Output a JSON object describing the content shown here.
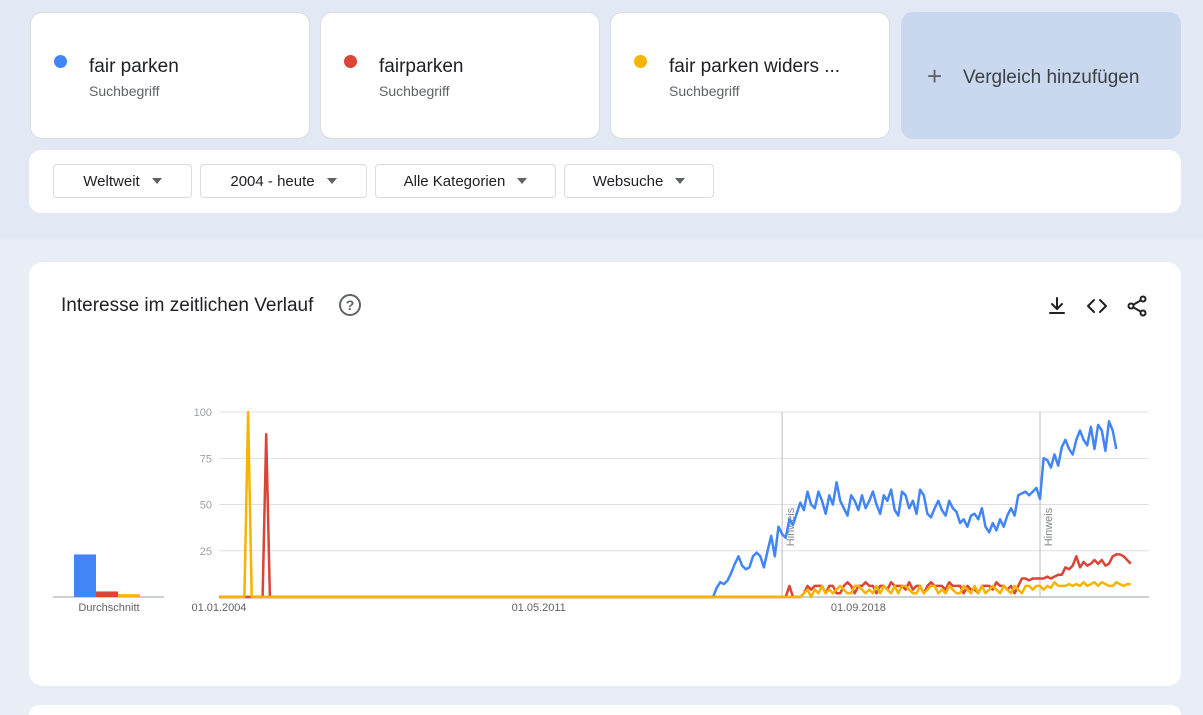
{
  "terms": [
    {
      "name": "fair parken",
      "type": "Suchbegriff",
      "color": "#4285f4"
    },
    {
      "name": "fairparken",
      "type": "Suchbegriff",
      "color": "#db4437"
    },
    {
      "name": "fair parken widers ...",
      "type": "Suchbegriff",
      "color": "#f4b400"
    }
  ],
  "add_compare": {
    "label": "Vergleich hinzufügen",
    "icon": "plus-icon"
  },
  "filters": {
    "region": "Weltweit",
    "time": "2004 - heute",
    "category": "Alle Kategorien",
    "search_type": "Websuche"
  },
  "chart_card": {
    "title": "Interesse im zeitlichen Verlauf",
    "help_icon": "help-circle-icon",
    "tools": [
      "download-icon",
      "embed-code-icon",
      "share-icon"
    ]
  },
  "chart_data": {
    "type": "line",
    "title": "Interesse im zeitlichen Verlauf",
    "ylim": [
      0,
      100
    ],
    "yticks": [
      100,
      75,
      50,
      25
    ],
    "x_labels": [
      "01.01.2004",
      "01.05.2011",
      "01.09.2018"
    ],
    "x_range": [
      "2004-01",
      "2025-05"
    ],
    "annotations": [
      {
        "label": "Hinweis",
        "date": "2016-12"
      },
      {
        "label": "Hinweis",
        "date": "2022-11"
      }
    ],
    "averages": {
      "label": "Durchschnitt",
      "values": [
        23,
        3,
        1.5
      ]
    },
    "series": [
      {
        "name": "fair parken",
        "color": "#4285f4",
        "start": "2015-06",
        "values": [
          5,
          8,
          7,
          9,
          13,
          18,
          22,
          17,
          15,
          16,
          22,
          24,
          22,
          16,
          25,
          33,
          22,
          38,
          34,
          32,
          42,
          39,
          45,
          51,
          47,
          57,
          50,
          48,
          57,
          52,
          45,
          55,
          50,
          62,
          52,
          48,
          44,
          55,
          52,
          47,
          55,
          48,
          52,
          57,
          50,
          45,
          55,
          52,
          58,
          47,
          44,
          57,
          55,
          48,
          52,
          45,
          58,
          55,
          45,
          43,
          48,
          52,
          47,
          44,
          52,
          48,
          46,
          40,
          42,
          38,
          44,
          45,
          42,
          48,
          38,
          35,
          40,
          36,
          42,
          38,
          44,
          48,
          44,
          55,
          56,
          57,
          55,
          57,
          59,
          53,
          75,
          74,
          70,
          77,
          71,
          81,
          85,
          80,
          77,
          85,
          90,
          85,
          82,
          92,
          80,
          93,
          90,
          79,
          95,
          90,
          80
        ]
      },
      {
        "name": "fairparken",
        "color": "#db4437",
        "start": "2004-01",
        "spikes": [
          {
            "date": "2005-02",
            "value": 88
          }
        ],
        "late_start": "2017-02",
        "values": [
          6,
          0,
          0,
          0,
          2,
          6,
          4,
          6,
          6,
          6,
          2,
          6,
          6,
          2,
          2,
          6,
          8,
          6,
          2,
          6,
          6,
          8,
          6,
          6,
          2,
          6,
          6,
          4,
          8,
          6,
          6,
          6,
          4,
          8,
          4,
          6,
          6,
          2,
          6,
          8,
          6,
          6,
          6,
          4,
          8,
          6,
          6,
          6,
          2,
          6,
          4,
          4,
          2,
          6,
          6,
          6,
          4,
          8,
          6,
          6,
          4,
          6,
          2,
          6,
          10,
          10,
          9,
          10,
          10,
          10,
          10,
          11,
          10,
          11,
          12,
          12,
          16,
          15,
          17,
          22,
          16,
          19,
          17,
          18,
          20,
          18,
          20,
          17,
          18,
          22,
          23,
          23,
          22,
          20,
          18
        ]
      },
      {
        "name": "fair parken widers ...",
        "color": "#f4b400",
        "start": "2004-01",
        "spikes": [
          {
            "date": "2004-09",
            "value": 100
          }
        ],
        "late_start": "2017-02",
        "values": [
          0,
          0,
          0,
          0,
          2,
          4,
          0,
          4,
          2,
          6,
          2,
          4,
          2,
          4,
          6,
          4,
          2,
          2,
          6,
          6,
          4,
          2,
          4,
          2,
          6,
          2,
          6,
          4,
          2,
          6,
          2,
          6,
          6,
          4,
          2,
          2,
          6,
          2,
          4,
          6,
          6,
          2,
          4,
          2,
          6,
          4,
          2,
          2,
          6,
          4,
          2,
          6,
          2,
          6,
          2,
          4,
          6,
          4,
          2,
          6,
          4,
          2,
          6,
          4,
          2,
          6,
          6,
          4,
          6,
          6,
          4,
          6,
          5,
          8,
          6,
          6,
          6,
          7,
          6,
          7,
          6,
          8,
          6,
          7,
          8,
          6,
          8,
          7,
          6,
          6,
          8,
          7,
          6,
          7,
          7
        ]
      }
    ]
  }
}
